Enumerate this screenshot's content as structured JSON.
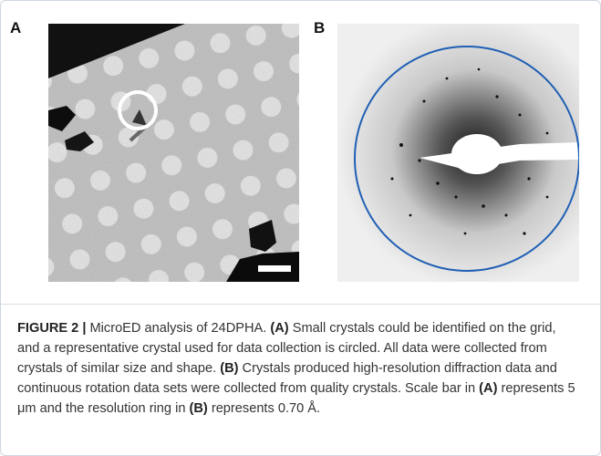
{
  "figure": {
    "panels": [
      {
        "label": "A"
      },
      {
        "label": "B"
      }
    ],
    "caption": {
      "runs": [
        "FIGURE 2 |",
        " MicroED analysis of 24DPHA. ",
        "(A)",
        " Small crystals could be identified on the grid, and a representative crystal used for data collection is circled. All data were collected from crystals of similar size and shape. ",
        "(B)",
        " Crystals produced high-resolution diffraction data and continuous rotation data sets were collected from quality crystals. Scale bar in ",
        "(A)",
        " represents 5 μm and the resolution ring in ",
        "(B)",
        " represents 0.70 Å."
      ]
    }
  }
}
